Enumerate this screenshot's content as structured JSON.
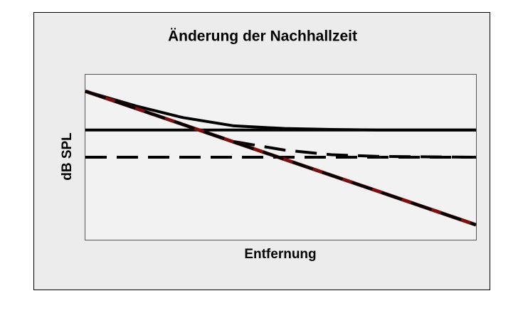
{
  "chart_data": {
    "type": "line",
    "title": "Änderung der Nachhallzeit",
    "x_label": "Entfernung",
    "y_label": "dB SPL",
    "xlim": [
      0,
      100
    ],
    "ylim": [
      0,
      100
    ],
    "x": [
      0,
      13,
      25,
      38,
      51,
      63,
      75,
      100
    ],
    "series": [
      {
        "color": "#000000",
        "dash": false,
        "values": [
          66.5,
          66.5,
          66.5,
          66.5,
          66.5,
          66.5,
          66.5,
          66.5
        ]
      },
      {
        "color": "#000000",
        "dash": true,
        "values": [
          50,
          50,
          50,
          50,
          50,
          50,
          50,
          50
        ]
      },
      {
        "color": "#000000",
        "dash": false,
        "values": [
          90,
          81,
          74,
          69,
          67.4,
          66.8,
          66.5,
          66.5
        ]
      },
      {
        "color": "#000000",
        "dash": true,
        "values": [
          90,
          79.5,
          69.8,
          59.5,
          54.3,
          51.5,
          50.5,
          50
        ]
      },
      {
        "color": "#000000",
        "under_color": "#7b1010",
        "dash": true,
        "values": [
          90,
          79.5,
          69.8,
          59.2,
          48.7,
          39,
          29.3,
          9
        ]
      }
    ]
  }
}
